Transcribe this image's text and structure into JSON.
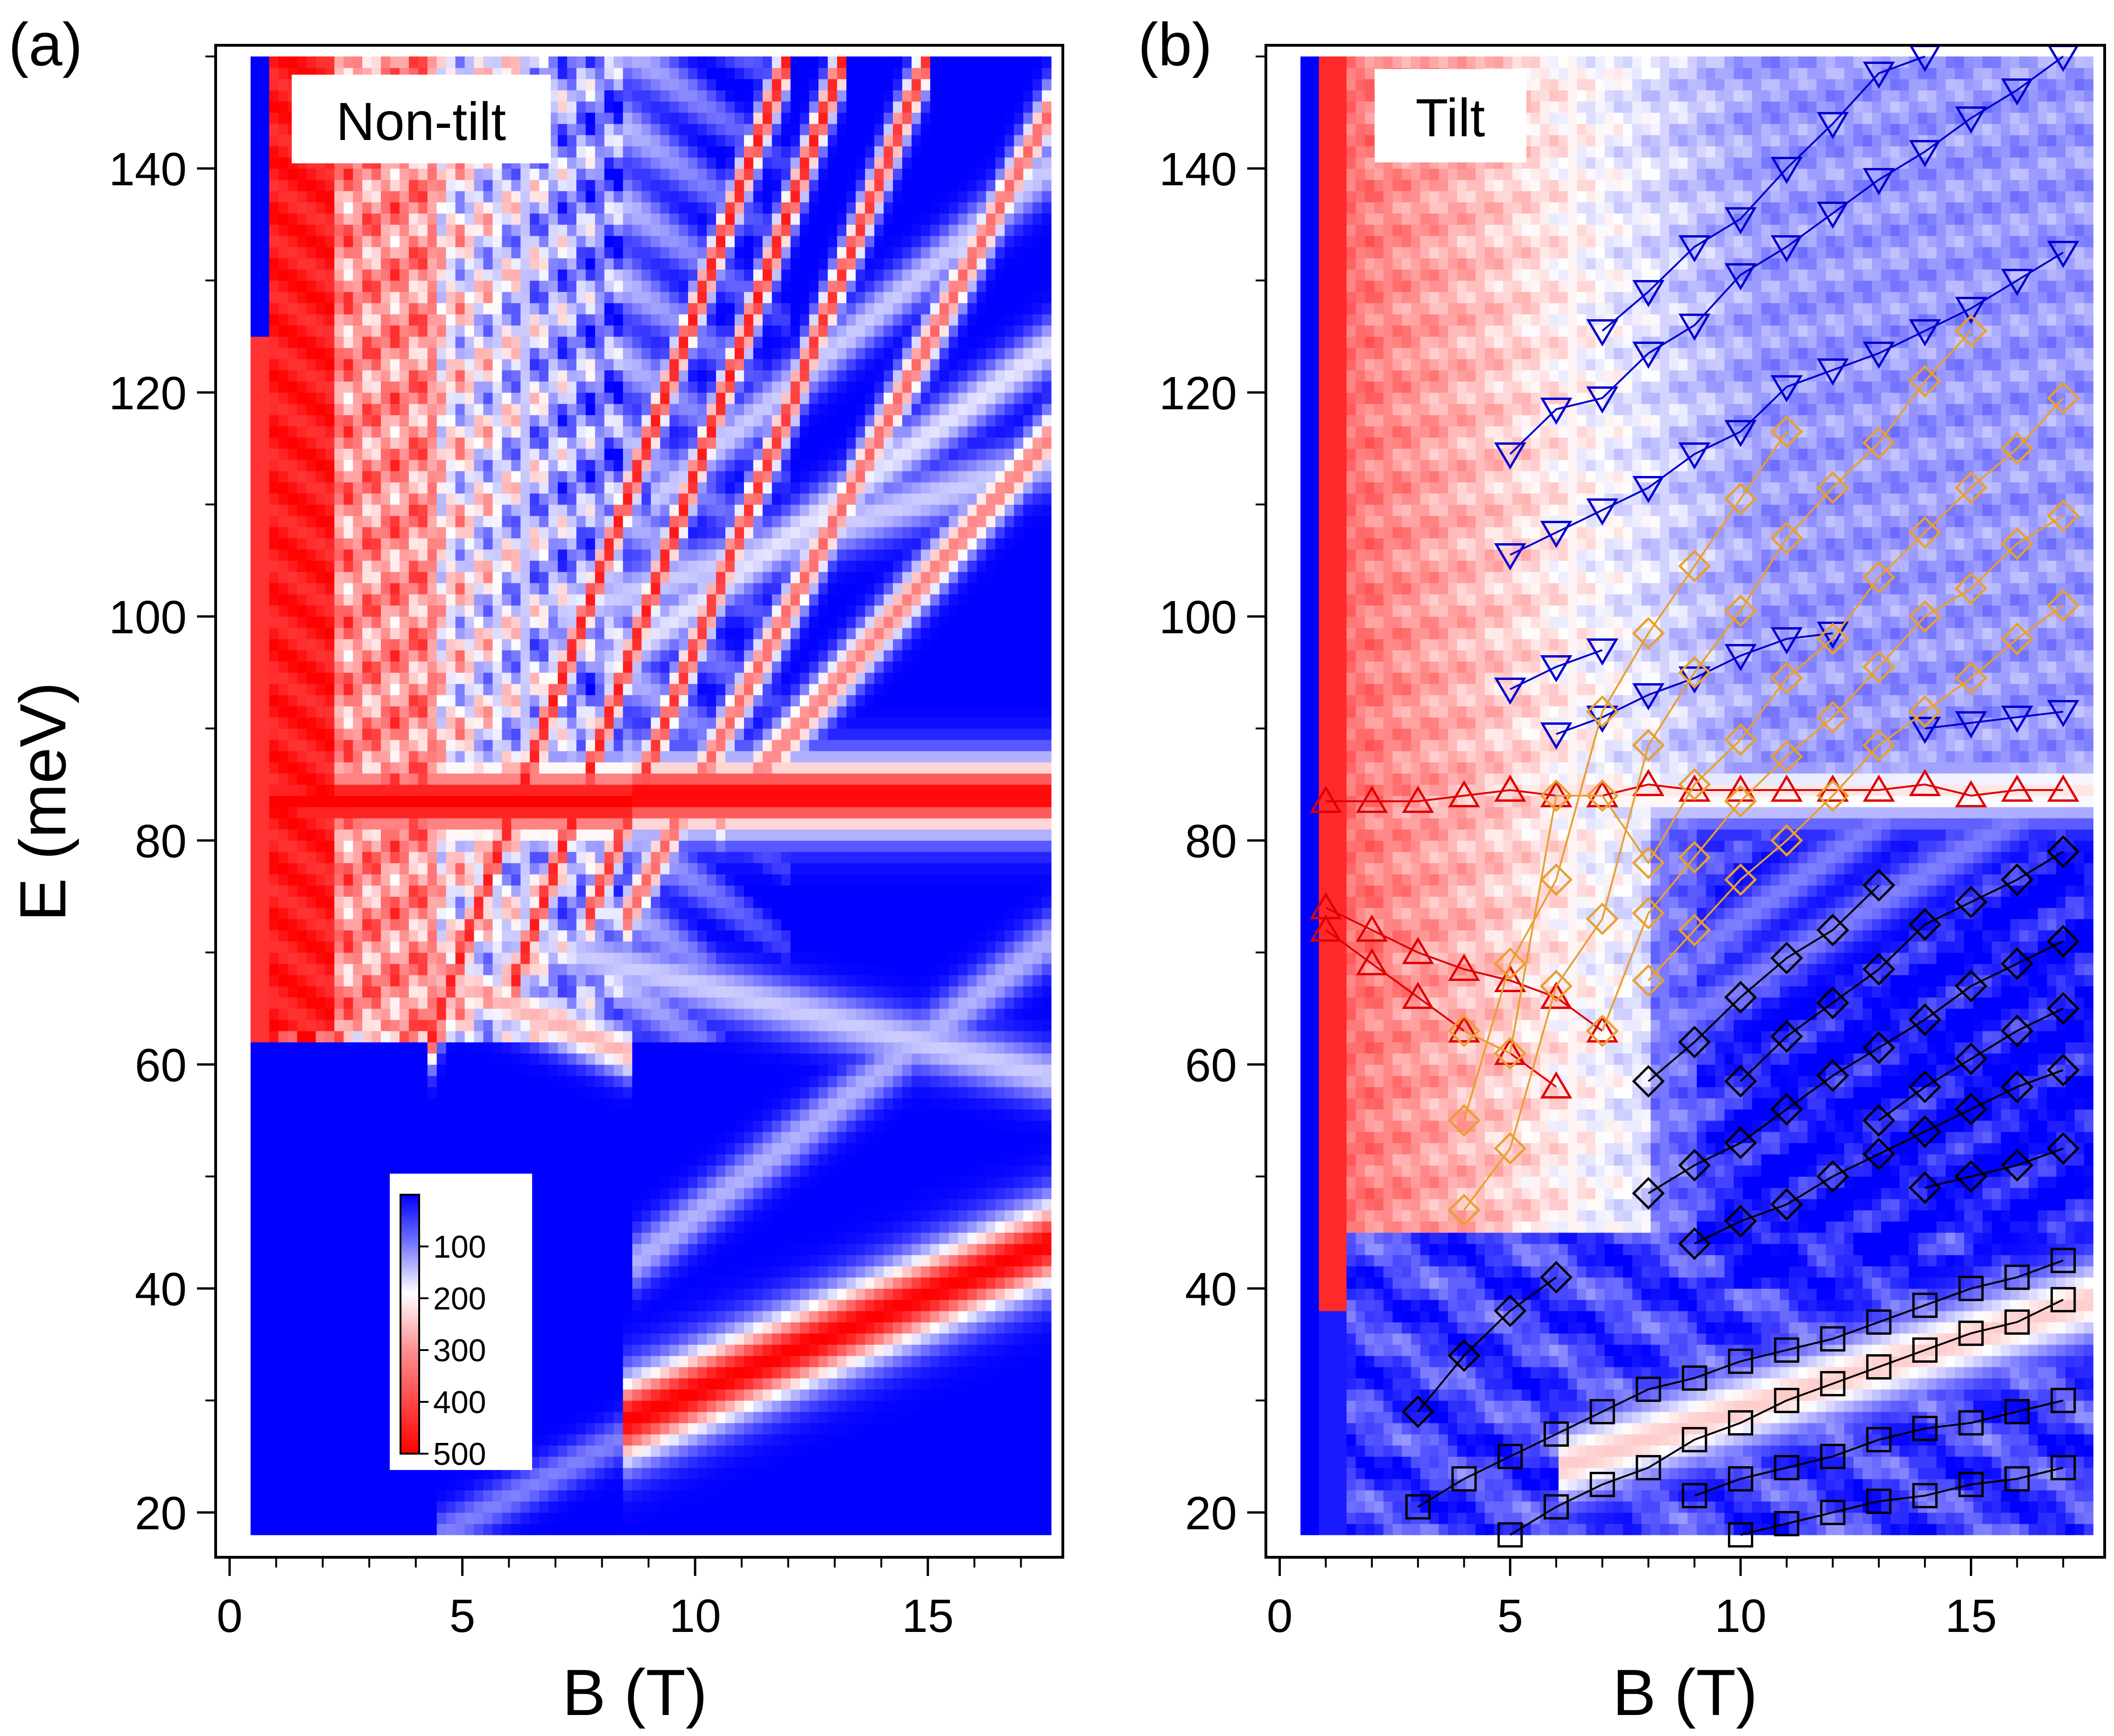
{
  "chart_data": [
    {
      "type": "heatmap",
      "panel_label": "(a)",
      "title": "Non-tilt",
      "xlabel": "B (T)",
      "ylabel": "E (meV)",
      "xlim": [
        -0.3,
        17.9
      ],
      "ylim": [
        16,
        151
      ],
      "xticks": [
        0,
        5,
        10,
        15
      ],
      "yticks": [
        20,
        40,
        60,
        80,
        100,
        120,
        140
      ],
      "colorbar": {
        "ticks": [
          100,
          200,
          300,
          400,
          500
        ],
        "range": [
          0,
          500
        ],
        "colors": [
          "#0000ff",
          "#ffffff",
          "#ff0000"
        ],
        "placement": "lower-left inside plot"
      },
      "map_extent": {
        "x": [
          0.45,
          17.6
        ],
        "y": [
          18,
          150
        ]
      },
      "bands": [
        {
          "x": [
            0.8,
            8.6
          ],
          "y": [
            83.5,
            83.5
          ],
          "width": 2.6,
          "v": 1.0
        },
        {
          "x": [
            8.6,
            17.6
          ],
          "y": [
            84,
            84
          ],
          "width": 2.4,
          "v": 1.0
        },
        {
          "x": [
            8.4,
            17.6
          ],
          "y": [
            28,
            44
          ],
          "width": 2.8,
          "v": 1.0
        },
        {
          "x": [
            3.2,
            8.6
          ],
          "y": [
            70,
            61
          ],
          "width": 1.6,
          "v": 0.65
        },
        {
          "x": [
            5.5,
            17.6
          ],
          "y": [
            72,
            59
          ],
          "width": 1.8,
          "v": 0.4
        },
        {
          "x": [
            8.6,
            17.6
          ],
          "y": [
            42,
            71
          ],
          "width": 1.8,
          "v": 0.35
        },
        {
          "x": [
            4.5,
            8.6
          ],
          "y": [
            18,
            27
          ],
          "width": 1.4,
          "v": 0.25
        },
        {
          "x": [
            4.2,
            12.0
          ],
          "y": [
            61,
            150
          ],
          "width": 1.9,
          "v": 0.95
        },
        {
          "x": [
            6.0,
            13.2
          ],
          "y": [
            66,
            150
          ],
          "width": 1.9,
          "v": 0.95
        },
        {
          "x": [
            7.6,
            15.0
          ],
          "y": [
            72,
            150
          ],
          "width": 1.9,
          "v": 0.9
        },
        {
          "x": [
            8.4,
            17.6
          ],
          "y": [
            72,
            145
          ],
          "width": 1.9,
          "v": 0.8
        },
        {
          "x": [
            10.5,
            17.6
          ],
          "y": [
            82,
            116
          ],
          "width": 1.8,
          "v": 0.75
        },
        {
          "x": [
            8.0,
            17.6
          ],
          "y": [
            95,
            124
          ],
          "width": 1.8,
          "v": 0.45
        },
        {
          "x": [
            7.0,
            17.6
          ],
          "y": [
            100,
            114
          ],
          "width": 1.8,
          "v": 0.4
        },
        {
          "x": [
            9.0,
            17.6
          ],
          "y": [
            110,
            140
          ],
          "width": 1.8,
          "v": 0.4
        }
      ]
    },
    {
      "type": "heatmap",
      "panel_label": "(b)",
      "title": "Tilt",
      "xlabel": "B (T)",
      "ylabel": "",
      "xlim": [
        -0.3,
        17.9
      ],
      "ylim": [
        16,
        151
      ],
      "xticks": [
        0,
        5,
        10,
        15
      ],
      "yticks": [
        20,
        40,
        60,
        80,
        100,
        120,
        140
      ],
      "map_extent": {
        "x": [
          0.45,
          17.6
        ],
        "y": [
          18,
          150
        ]
      },
      "bands": [
        {
          "x": [
            0.8,
            17.6
          ],
          "y": [
            84,
            84.5
          ],
          "width": 2.0,
          "v": 0.55
        },
        {
          "x": [
            6.0,
            17.6
          ],
          "y": [
            24,
            39
          ],
          "width": 2.6,
          "v": 0.6
        },
        {
          "x": [
            8.0,
            17.6
          ],
          "y": [
            62,
            86
          ],
          "width": 1.6,
          "v": 0.25
        },
        {
          "x": [
            9.0,
            17.6
          ],
          "y": [
            70,
            95
          ],
          "width": 1.6,
          "v": 0.25
        }
      ],
      "series": [
        {
          "marker": "triangle-down",
          "color": "#0000d0",
          "x": [
            7,
            8,
            9,
            10,
            11,
            12,
            13,
            14
          ],
          "y": [
            125.5,
            129,
            133,
            135.5,
            140,
            144,
            148.5,
            150
          ]
        },
        {
          "marker": "triangle-down",
          "color": "#0000d0",
          "x": [
            5,
            6,
            7,
            8,
            9,
            10,
            11,
            12,
            13,
            14,
            15,
            16,
            17
          ],
          "y": [
            114.5,
            118.5,
            119.5,
            123.5,
            126,
            130.5,
            133,
            136,
            139,
            141.5,
            144.5,
            147,
            150
          ]
        },
        {
          "marker": "triangle-down",
          "color": "#0000d0",
          "x": [
            5,
            6,
            7,
            8,
            9,
            10,
            11,
            12,
            13,
            14,
            15,
            16,
            17
          ],
          "y": [
            105.5,
            107.5,
            109.5,
            111.5,
            114.5,
            116.5,
            120.5,
            122,
            123.5,
            125.5,
            127.5,
            130,
            132.5
          ]
        },
        {
          "marker": "triangle-down",
          "color": "#0000d0",
          "x": [
            5,
            6,
            7
          ],
          "y": [
            93.5,
            95.5,
            97
          ]
        },
        {
          "marker": "triangle-down",
          "color": "#0000d0",
          "x": [
            6,
            7,
            8,
            9,
            10,
            11,
            12
          ],
          "y": [
            89.5,
            91,
            93,
            94.5,
            96.5,
            98,
            98.5
          ]
        },
        {
          "marker": "triangle-down",
          "color": "#0000d0",
          "x": [
            14,
            15,
            16,
            17
          ],
          "y": [
            90,
            90.5,
            91,
            91.5
          ]
        },
        {
          "marker": "triangle-up",
          "color": "#e00000",
          "x": [
            1,
            2,
            3,
            4,
            5,
            6,
            7,
            8,
            9,
            10,
            11,
            12,
            13,
            14,
            15,
            16,
            17
          ],
          "y": [
            83.5,
            83.5,
            83.5,
            84,
            84.5,
            84,
            84,
            85,
            84.5,
            84.5,
            84.5,
            84.5,
            84.5,
            85,
            84,
            84.5,
            84.5
          ]
        },
        {
          "marker": "triangle-up",
          "color": "#e00000",
          "x": [
            1,
            2,
            3,
            4,
            5,
            6
          ],
          "y": [
            74,
            72,
            70,
            68.5,
            67.5,
            66
          ]
        },
        {
          "marker": "triangle-up",
          "color": "#e00000",
          "x": [
            1,
            2,
            3,
            4,
            5,
            6
          ],
          "y": [
            72,
            69,
            66,
            63,
            61,
            58
          ]
        },
        {
          "marker": "triangle-up",
          "color": "#e00000",
          "x": [
            6,
            7
          ],
          "y": [
            66,
            63
          ]
        },
        {
          "marker": "diamond",
          "color": "#e8a030",
          "x": [
            4,
            5,
            6,
            7,
            8,
            9,
            10,
            11
          ],
          "y": [
            55,
            69,
            76.5,
            91.5,
            98.5,
            104.5,
            110.5,
            116.5
          ]
        },
        {
          "marker": "diamond",
          "color": "#e8a030",
          "x": [
            4,
            5,
            6,
            7,
            8,
            9,
            10,
            11,
            12,
            13,
            14,
            15
          ],
          "y": [
            47,
            52.5,
            67,
            73,
            88.5,
            95,
            100.5,
            107,
            111.5,
            115.5,
            121,
            125.5
          ]
        },
        {
          "marker": "diamond",
          "color": "#e8a030",
          "x": [
            4,
            5,
            6,
            7,
            8,
            9,
            10,
            11,
            12,
            13,
            14,
            15,
            16,
            17
          ],
          "y": [
            63,
            61,
            84,
            84,
            78,
            85,
            89,
            94.5,
            98,
            103.5,
            107.5,
            111.5,
            115,
            119.5
          ]
        },
        {
          "marker": "diamond",
          "color": "#e8a030",
          "x": [
            7,
            8,
            9,
            10,
            11,
            12,
            13,
            14,
            15,
            16,
            17
          ],
          "y": [
            63,
            73.5,
            78.5,
            83.5,
            87.5,
            91,
            95.5,
            100,
            102.5,
            106.5,
            109
          ]
        },
        {
          "marker": "diamond",
          "color": "#e8a030",
          "x": [
            8,
            9,
            10,
            11,
            12,
            13,
            14,
            15,
            16,
            17
          ],
          "y": [
            67.5,
            72,
            76.5,
            80,
            84,
            88.5,
            91.5,
            94.5,
            98,
            101
          ]
        },
        {
          "marker": "diamond",
          "color": "#000000",
          "x": [
            3,
            4,
            5,
            6
          ],
          "y": [
            29,
            34,
            38,
            41
          ]
        },
        {
          "marker": "diamond",
          "color": "#000000",
          "x": [
            8,
            9,
            10,
            11,
            12,
            13
          ],
          "y": [
            58.5,
            62,
            66,
            69.5,
            72,
            76
          ]
        },
        {
          "marker": "diamond",
          "color": "#000000",
          "x": [
            10,
            11,
            12,
            13,
            14,
            15,
            16,
            17
          ],
          "y": [
            58.5,
            62.5,
            65.5,
            68.5,
            72.5,
            74.5,
            76.5,
            79
          ]
        },
        {
          "marker": "diamond",
          "color": "#000000",
          "x": [
            8,
            9,
            10,
            11,
            12,
            13,
            14,
            15,
            16,
            17
          ],
          "y": [
            48.5,
            51,
            53,
            56,
            59,
            61.5,
            64,
            67,
            69,
            71
          ]
        },
        {
          "marker": "diamond",
          "color": "#000000",
          "x": [
            9,
            10,
            11,
            12,
            13,
            14,
            15,
            16,
            17
          ],
          "y": [
            44,
            46,
            47.5,
            50,
            52,
            54,
            56,
            58,
            59.5
          ]
        },
        {
          "marker": "diamond",
          "color": "#000000",
          "x": [
            13,
            14,
            15,
            16,
            17
          ],
          "y": [
            55,
            58,
            60.5,
            63,
            65
          ]
        },
        {
          "marker": "diamond",
          "color": "#000000",
          "x": [
            14,
            15,
            16,
            17
          ],
          "y": [
            49,
            50,
            51,
            52.5
          ]
        },
        {
          "marker": "square",
          "color": "#000000",
          "x": [
            3,
            4,
            5,
            6,
            7,
            8,
            9,
            10,
            11,
            12,
            13,
            14,
            15,
            16,
            17
          ],
          "y": [
            20.5,
            23,
            25,
            27,
            29,
            31,
            32,
            33.5,
            34.5,
            35.5,
            37,
            38.5,
            40,
            41,
            42.5
          ]
        },
        {
          "marker": "square",
          "color": "#000000",
          "x": [
            5,
            6,
            7,
            8,
            9,
            10,
            11,
            12,
            13,
            14,
            15,
            16,
            17
          ],
          "y": [
            18,
            20.5,
            22.5,
            24,
            26.5,
            28,
            30,
            31.5,
            33,
            34.5,
            36,
            37,
            39
          ]
        },
        {
          "marker": "square",
          "color": "#000000",
          "x": [
            9,
            10,
            11,
            12,
            13,
            14,
            15,
            16,
            17
          ],
          "y": [
            21.5,
            23,
            24,
            25,
            26.5,
            27.5,
            28,
            29,
            30
          ]
        },
        {
          "marker": "square",
          "color": "#000000",
          "x": [
            10,
            11,
            12,
            13,
            14,
            15,
            16,
            17
          ],
          "y": [
            18,
            19,
            20,
            21,
            21.5,
            22.5,
            23,
            24
          ]
        }
      ]
    }
  ]
}
